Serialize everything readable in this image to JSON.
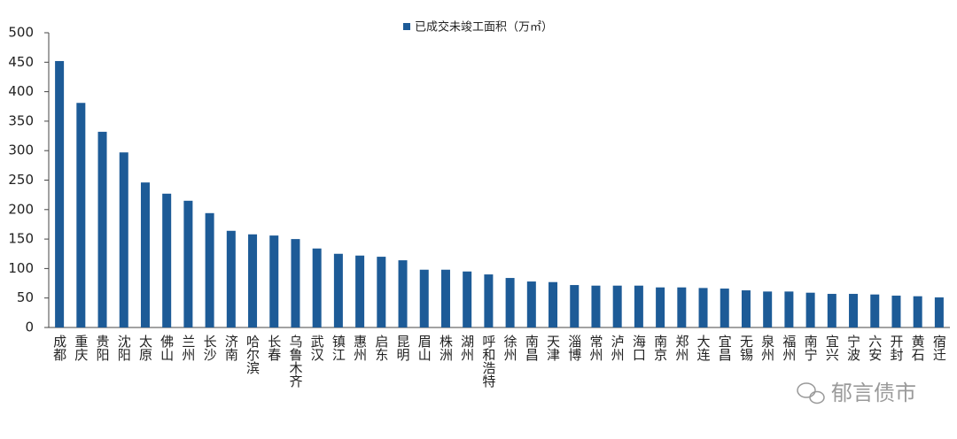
{
  "chart_data": {
    "type": "bar",
    "legend": "已成交未竣工面积（万㎡）",
    "color": "#1d5b97",
    "categories": [
      "成都",
      "重庆",
      "贵阳",
      "沈阳",
      "太原",
      "佛山",
      "兰州",
      "长沙",
      "济南",
      "哈尔滨",
      "长春",
      "乌鲁木齐",
      "武汉",
      "镇江",
      "惠州",
      "启东",
      "昆明",
      "眉山",
      "株洲",
      "湖州",
      "呼和浩特",
      "徐州",
      "南昌",
      "天津",
      "淄博",
      "常州",
      "泸州",
      "海口",
      "南京",
      "郑州",
      "大连",
      "宜昌",
      "无锡",
      "泉州",
      "福州",
      "南宁",
      "宜兴",
      "宁波",
      "六安",
      "开封",
      "黄石",
      "宿迁"
    ],
    "values": [
      452,
      381,
      332,
      297,
      246,
      227,
      215,
      194,
      164,
      158,
      156,
      150,
      134,
      125,
      122,
      120,
      114,
      98,
      98,
      95,
      90,
      84,
      78,
      77,
      72,
      71,
      71,
      71,
      68,
      68,
      67,
      66,
      63,
      61,
      61,
      59,
      57,
      57,
      56,
      54,
      53,
      51
    ],
    "ylim": [
      0,
      500
    ],
    "yticks": [
      0,
      50,
      100,
      150,
      200,
      250,
      300,
      350,
      400,
      450,
      500
    ],
    "grid": false
  },
  "watermark": "郁言债市"
}
